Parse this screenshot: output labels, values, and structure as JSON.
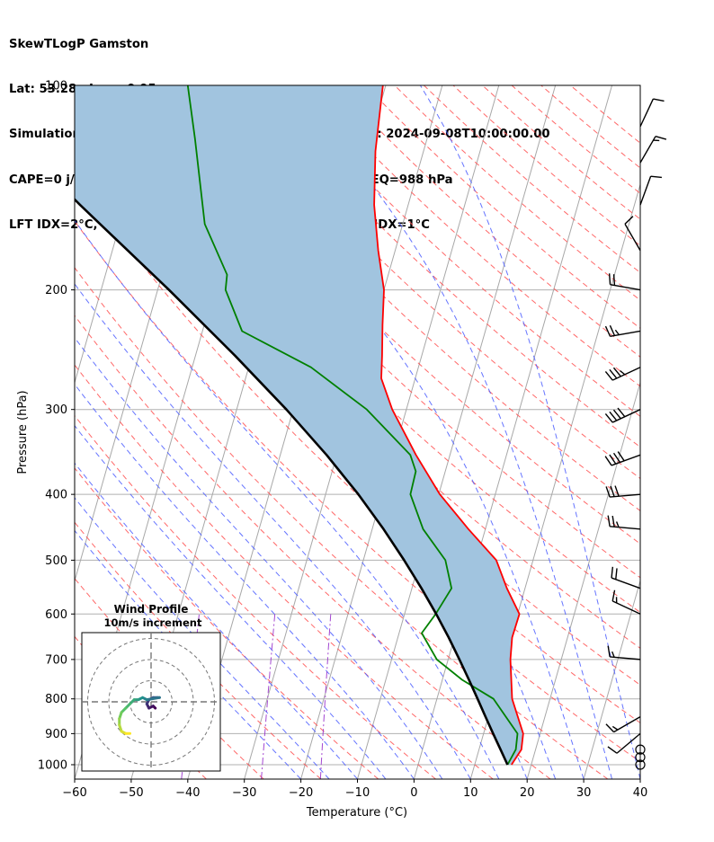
{
  "title_lines": [
    "SkewTLogP Gamston",
    "Lat: 53.28   Lon: -0.95",
    "Simulation start time: 2024-09-08_00:00:00, Valid time: 2024-09-08T10:00:00.00",
    "CAPE=0 j/kg, CIN=0 j/kg, LCL=989 hPa, LFC=nan hPa, EQ=988 hPa",
    "LFT IDX=2°C, K IDX=26°C, TOTAL TOTS=49°C, SHWTR_IDX=1°C"
  ],
  "chart_data": {
    "type": "line",
    "subtype": "skew-t log-p",
    "xlabel": "Temperature (°C)",
    "ylabel": "Pressure (hPa)",
    "xlim": [
      -60,
      40
    ],
    "ylim_pressure_hPa": [
      1050,
      100
    ],
    "y_scale": "log",
    "grid": true,
    "x_ticks": [
      -60,
      -50,
      -40,
      -30,
      -20,
      -10,
      0,
      10,
      20,
      30,
      40
    ],
    "x_tick_labels": [
      "−60",
      "−50",
      "−40",
      "−30",
      "−20",
      "−10",
      "0",
      "10",
      "20",
      "30",
      "40"
    ],
    "y_ticks": [
      1000,
      900,
      800,
      700,
      600,
      500,
      400,
      300,
      200,
      100
    ],
    "y_tick_labels": [
      "1000",
      "900",
      "800",
      "700",
      "600",
      "500",
      "400",
      "300",
      "200",
      "100"
    ],
    "series": [
      {
        "role": "temperature",
        "color": "#ff0000",
        "points": [
          [
            1000,
            16.5
          ],
          [
            950,
            17.5
          ],
          [
            900,
            17.0
          ],
          [
            800,
            13.3
          ],
          [
            700,
            11.0
          ],
          [
            650,
            10.2
          ],
          [
            600,
            10.3
          ],
          [
            550,
            6.8
          ],
          [
            500,
            3.5
          ],
          [
            450,
            -3.0
          ],
          [
            400,
            -9.8
          ],
          [
            350,
            -16.0
          ],
          [
            300,
            -22.5
          ],
          [
            270,
            -26.0
          ],
          [
            250,
            -27.0
          ],
          [
            225,
            -28.5
          ],
          [
            200,
            -30.0
          ],
          [
            175,
            -33.0
          ],
          [
            150,
            -36.0
          ],
          [
            125,
            -38.5
          ],
          [
            100,
            -40.5
          ]
        ]
      },
      {
        "role": "dewpoint",
        "color": "#008000",
        "points": [
          [
            1000,
            15.8
          ],
          [
            950,
            16.5
          ],
          [
            900,
            16.0
          ],
          [
            800,
            10.0
          ],
          [
            750,
            3.5
          ],
          [
            700,
            -2.0
          ],
          [
            640,
            -6.0
          ],
          [
            600,
            -4.5
          ],
          [
            550,
            -3.0
          ],
          [
            500,
            -5.5
          ],
          [
            450,
            -11.0
          ],
          [
            400,
            -15.0
          ],
          [
            370,
            -15.2
          ],
          [
            350,
            -17.0
          ],
          [
            300,
            -27.0
          ],
          [
            260,
            -39.0
          ],
          [
            230,
            -53.0
          ],
          [
            200,
            -58.0
          ],
          [
            190,
            -58.5
          ],
          [
            160,
            -65.0
          ],
          [
            120,
            -71.0
          ],
          [
            100,
            -75.0
          ]
        ]
      },
      {
        "role": "parcel profile",
        "color": "#000000",
        "points": [
          [
            1000,
            15.8
          ],
          [
            950,
            13.8
          ],
          [
            900,
            11.7
          ],
          [
            850,
            9.5
          ],
          [
            800,
            7.2
          ],
          [
            750,
            4.7
          ],
          [
            700,
            2.0
          ],
          [
            650,
            -1.0
          ],
          [
            600,
            -4.4
          ],
          [
            550,
            -8.3
          ],
          [
            500,
            -12.8
          ],
          [
            450,
            -18.0
          ],
          [
            400,
            -24.2
          ],
          [
            350,
            -31.8
          ],
          [
            300,
            -41.2
          ],
          [
            250,
            -53.0
          ],
          [
            200,
            -68.0
          ],
          [
            150,
            -88.0
          ],
          [
            100,
            -115.0
          ]
        ]
      }
    ],
    "shaded_region": {
      "between": [
        "parcel profile",
        "temperature"
      ],
      "color": "#a1c4df"
    },
    "reference_lines": {
      "isotherms": "gray solid",
      "dry_adiabats": "red dashed",
      "moist_adiabats": "blue dashed",
      "mixing_ratio": "purple dash-dot"
    },
    "wind_barbs": [
      {
        "p": 1000,
        "speed_kt": 0
      },
      {
        "p": 975,
        "speed_kt": 0
      },
      {
        "p": 950,
        "speed_kt": 0
      },
      {
        "p": 900,
        "speed_kt": 10,
        "dir": 230
      },
      {
        "p": 850,
        "speed_kt": 15,
        "dir": 240
      },
      {
        "p": 700,
        "speed_kt": 15,
        "dir": 275
      },
      {
        "p": 600,
        "speed_kt": 15,
        "dir": 295
      },
      {
        "p": 550,
        "speed_kt": 20,
        "dir": 290
      },
      {
        "p": 450,
        "speed_kt": 25,
        "dir": 275
      },
      {
        "p": 400,
        "speed_kt": 30,
        "dir": 265
      },
      {
        "p": 350,
        "speed_kt": 40,
        "dir": 250
      },
      {
        "p": 300,
        "speed_kt": 40,
        "dir": 245
      },
      {
        "p": 260,
        "speed_kt": 35,
        "dir": 245
      },
      {
        "p": 230,
        "speed_kt": 25,
        "dir": 260
      },
      {
        "p": 200,
        "speed_kt": 20,
        "dir": 280
      },
      {
        "p": 175,
        "speed_kt": 10,
        "dir": 330
      },
      {
        "p": 150,
        "speed_kt": 10,
        "dir": 20
      },
      {
        "p": 130,
        "speed_kt": 15,
        "dir": 30
      },
      {
        "p": 115,
        "speed_kt": 10,
        "dir": 25
      }
    ],
    "hodograph": {
      "title": "Wind Profile",
      "subtitle": "10m/s increment",
      "ring_increment_ms": 10,
      "rings": 3,
      "points_ms": [
        [
          2,
          -3
        ],
        [
          1,
          -2
        ],
        [
          -1,
          -3
        ],
        [
          -2,
          -1
        ],
        [
          -1,
          1
        ],
        [
          1,
          2
        ],
        [
          3,
          2
        ],
        [
          4,
          2
        ],
        [
          -2,
          1
        ],
        [
          -4,
          2
        ],
        [
          -6,
          1
        ],
        [
          -8,
          1
        ],
        [
          -10,
          -1
        ],
        [
          -12,
          -3
        ],
        [
          -14,
          -5
        ],
        [
          -15,
          -8
        ],
        [
          -15,
          -11
        ],
        [
          -14,
          -14
        ],
        [
          -12,
          -15
        ],
        [
          -10,
          -15
        ]
      ]
    }
  }
}
